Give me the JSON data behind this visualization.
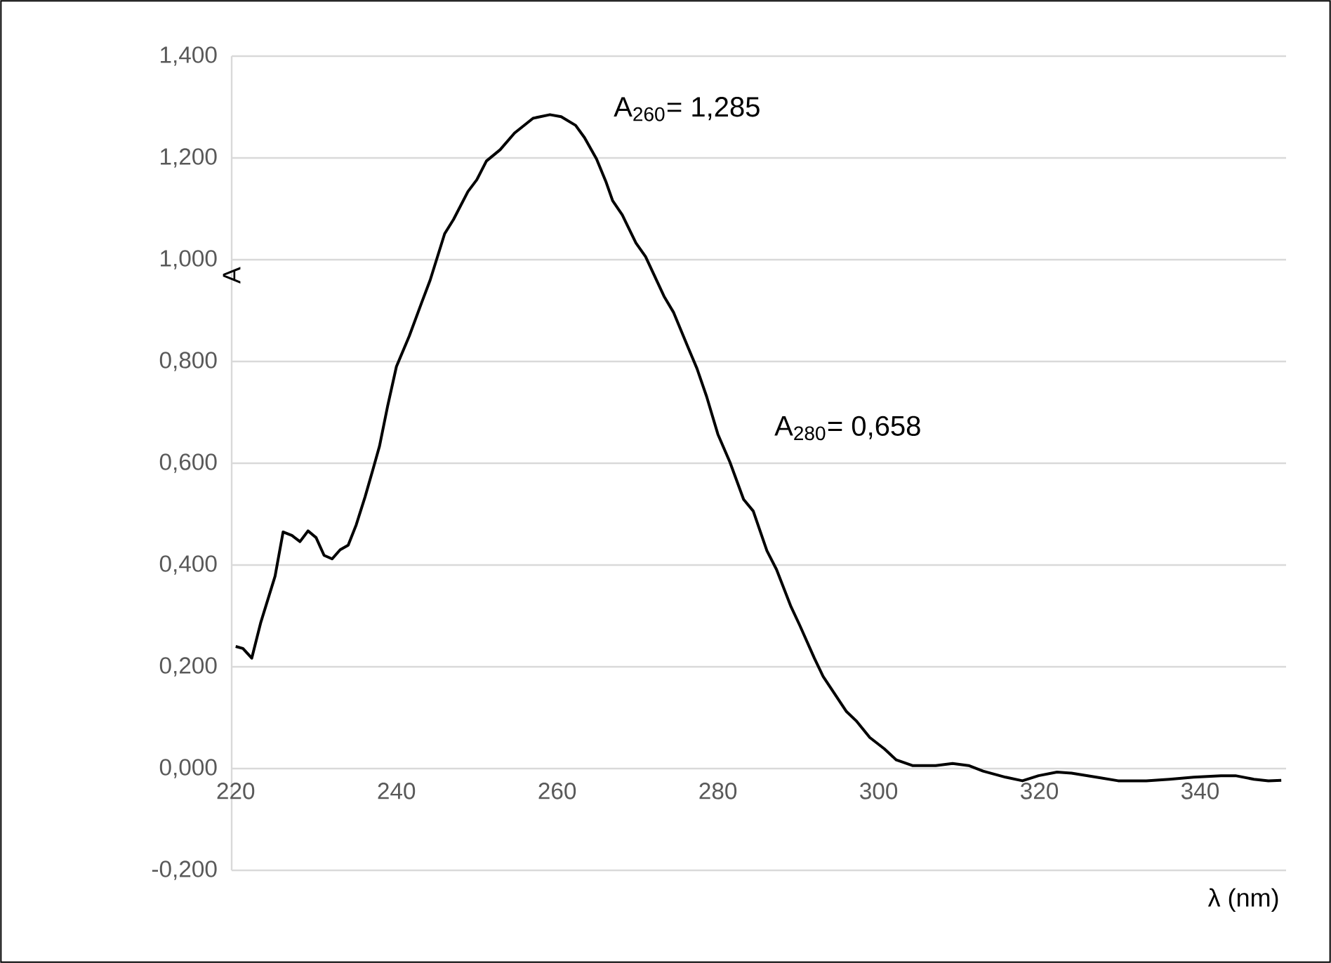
{
  "chart_data": {
    "type": "line",
    "xlabel": "λ (nm)",
    "ylabel": "A",
    "xlim": [
      219.5,
      350.7
    ],
    "xticks": [
      220,
      240,
      260,
      280,
      300,
      320,
      340
    ],
    "ylim": [
      -0.2,
      1.4
    ],
    "yticks": [
      {
        "value": -0.2,
        "label": "-0,200"
      },
      {
        "value": 0,
        "label": "0,000"
      },
      {
        "value": 0.2,
        "label": "0,200"
      },
      {
        "value": 0.4,
        "label": "0,400"
      },
      {
        "value": 0.6,
        "label": "0,600"
      },
      {
        "value": 0.8,
        "label": "0,800"
      },
      {
        "value": 1.0,
        "label": "1,000"
      },
      {
        "value": 1.2,
        "label": "1,200"
      },
      {
        "value": 1.4,
        "label": "1,400"
      }
    ],
    "grid": "y",
    "annotations": [
      {
        "text": "A$_{260}$= 1,285",
        "x": 260,
        "y": 1.285
      },
      {
        "text": "A$_{280}$= 0,658",
        "x": 280,
        "y": 0.658
      }
    ],
    "series": [
      {
        "color": "#000000",
        "line_style": "solid",
        "x": [
          220,
          220.9,
          222,
          223.1,
          224.9,
          225.9,
          227,
          228,
          229,
          230,
          231,
          232,
          233,
          234,
          235,
          236.1,
          237.1,
          237.9,
          238.9,
          240,
          241.6,
          243.1,
          244.2,
          246,
          247.1,
          248.9,
          250,
          251.2,
          252.9,
          254.7,
          257,
          259.1,
          260.5,
          262.3,
          263.4,
          264.9,
          266.1,
          266.9,
          268.1,
          269.8,
          271,
          273.3,
          274.5,
          276.2,
          277.4,
          278.6,
          280,
          281.5,
          283.2,
          284.4,
          286.1,
          287.3,
          289.1,
          290.2,
          292,
          293.1,
          296,
          297.2,
          298.9,
          300.7,
          302.2,
          304.2,
          307.1,
          309.2,
          311.2,
          313,
          315.8,
          317.9,
          319.9,
          322.2,
          324,
          327.5,
          329.8,
          333.3,
          336.2,
          339.2,
          342.6,
          344.4,
          346.7,
          348.5,
          350.1
        ],
        "values": [
          0.24,
          0.236,
          0.217,
          0.286,
          0.378,
          0.465,
          0.458,
          0.446,
          0.467,
          0.454,
          0.419,
          0.412,
          0.43,
          0.439,
          0.479,
          0.534,
          0.589,
          0.634,
          0.712,
          0.79,
          0.85,
          0.914,
          0.96,
          1.051,
          1.079,
          1.134,
          1.157,
          1.194,
          1.216,
          1.249,
          1.278,
          1.285,
          1.281,
          1.264,
          1.24,
          1.198,
          1.152,
          1.116,
          1.088,
          1.033,
          1.006,
          0.928,
          0.896,
          0.831,
          0.786,
          0.731,
          0.657,
          0.602,
          0.529,
          0.506,
          0.428,
          0.391,
          0.318,
          0.281,
          0.217,
          0.181,
          0.112,
          0.094,
          0.061,
          0.039,
          0.017,
          0.006,
          0.006,
          0.01,
          0.006,
          -0.005,
          -0.017,
          -0.024,
          -0.014,
          -0.007,
          -0.009,
          -0.018,
          -0.024,
          -0.024,
          -0.021,
          -0.017,
          -0.014,
          -0.014,
          -0.021,
          -0.024,
          -0.023
        ]
      }
    ]
  }
}
